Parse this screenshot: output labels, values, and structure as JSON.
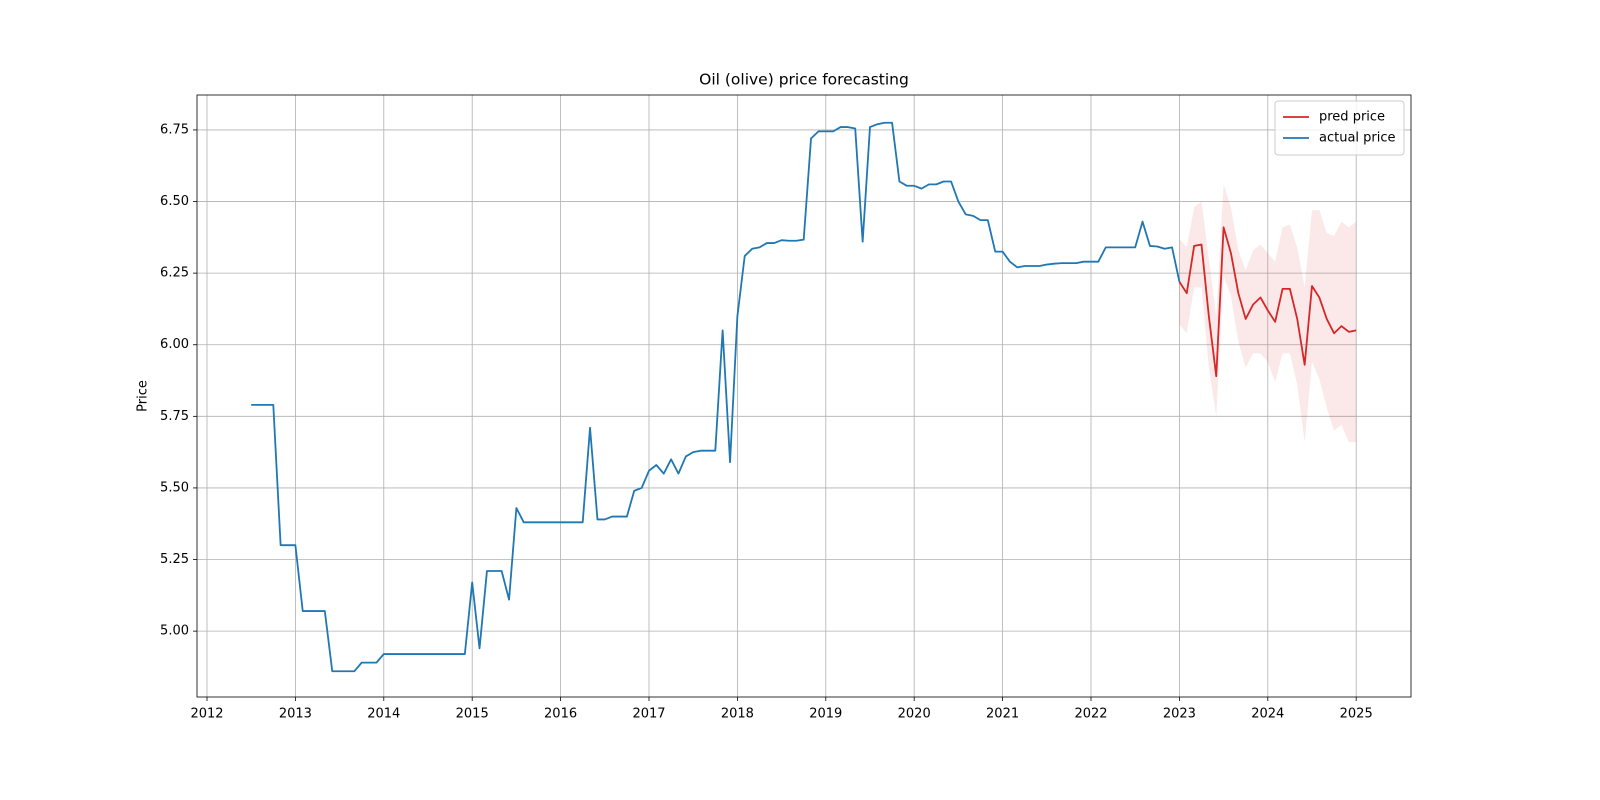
{
  "chart_data": {
    "type": "line",
    "title": "Oil (olive) price forecasting",
    "y_label": "Price",
    "xlim": [
      2011.887,
      2025.62
    ],
    "ylim": [
      4.77,
      6.872
    ],
    "xticks": [
      2012,
      2013,
      2014,
      2015,
      2016,
      2017,
      2018,
      2019,
      2020,
      2021,
      2022,
      2023,
      2024,
      2025
    ],
    "yticks": [
      {
        "value": 5,
        "label": "5.00"
      },
      {
        "value": 5.25,
        "label": "5.25"
      },
      {
        "value": 5.5,
        "label": "5.50"
      },
      {
        "value": 5.75,
        "label": "5.75"
      },
      {
        "value": 6,
        "label": "6.00"
      },
      {
        "value": 6.25,
        "label": "6.25"
      },
      {
        "value": 6.5,
        "label": "6.50"
      },
      {
        "value": 6.75,
        "label": "6.75"
      }
    ],
    "grid": true,
    "legend": "upper right",
    "series": [
      {
        "name": "pred price",
        "color": "#d62728",
        "band_color": "#d62728",
        "x": [
          2023,
          2023.083,
          2023.167,
          2023.25,
          2023.333,
          2023.417,
          2023.5,
          2023.583,
          2023.667,
          2023.75,
          2023.833,
          2023.917,
          2024,
          2024.083,
          2024.167,
          2024.25,
          2024.333,
          2024.417,
          2024.5,
          2024.583,
          2024.667,
          2024.75,
          2024.833,
          2024.917,
          2025
        ],
        "values": [
          6.22,
          6.18,
          6.345,
          6.35,
          6.1,
          5.89,
          6.41,
          6.32,
          6.18,
          6.09,
          6.14,
          6.165,
          6.12,
          6.08,
          6.195,
          6.195,
          6.09,
          5.93,
          6.205,
          6.165,
          6.09,
          6.04,
          6.065,
          6.045,
          6.05
        ],
        "upper": [
          6.37,
          6.34,
          6.48,
          6.5,
          6.3,
          6.1,
          6.56,
          6.48,
          6.33,
          6.26,
          6.33,
          6.35,
          6.32,
          6.29,
          6.41,
          6.42,
          6.34,
          6.2,
          6.47,
          6.47,
          6.39,
          6.38,
          6.43,
          6.41,
          6.43
        ],
        "lower": [
          6.07,
          6.04,
          6.2,
          6.2,
          5.92,
          5.75,
          6.24,
          6.17,
          6.01,
          5.92,
          5.97,
          5.97,
          5.94,
          5.87,
          5.97,
          5.97,
          5.86,
          5.66,
          5.94,
          5.88,
          5.78,
          5.7,
          5.72,
          5.66,
          5.66
        ]
      },
      {
        "name": "actual price",
        "color": "#1f77b4",
        "x": [
          2012.5,
          2012.583,
          2012.667,
          2012.75,
          2012.833,
          2012.917,
          2013,
          2013.083,
          2013.167,
          2013.25,
          2013.333,
          2013.417,
          2013.5,
          2013.583,
          2013.667,
          2013.75,
          2013.833,
          2013.917,
          2014,
          2014.083,
          2014.167,
          2014.25,
          2014.333,
          2014.417,
          2014.5,
          2014.583,
          2014.667,
          2014.75,
          2014.833,
          2014.917,
          2015,
          2015.083,
          2015.167,
          2015.25,
          2015.333,
          2015.417,
          2015.5,
          2015.583,
          2015.667,
          2015.75,
          2015.833,
          2015.917,
          2016,
          2016.083,
          2016.167,
          2016.25,
          2016.333,
          2016.417,
          2016.5,
          2016.583,
          2016.667,
          2016.75,
          2016.833,
          2016.917,
          2017,
          2017.083,
          2017.167,
          2017.25,
          2017.333,
          2017.417,
          2017.5,
          2017.583,
          2017.667,
          2017.75,
          2017.833,
          2017.917,
          2018,
          2018.083,
          2018.167,
          2018.25,
          2018.333,
          2018.417,
          2018.5,
          2018.583,
          2018.667,
          2018.75,
          2018.833,
          2018.917,
          2019,
          2019.083,
          2019.167,
          2019.25,
          2019.333,
          2019.417,
          2019.5,
          2019.583,
          2019.667,
          2019.75,
          2019.833,
          2019.917,
          2020,
          2020.083,
          2020.167,
          2020.25,
          2020.333,
          2020.417,
          2020.5,
          2020.583,
          2020.667,
          2020.75,
          2020.833,
          2020.917,
          2021,
          2021.083,
          2021.167,
          2021.25,
          2021.333,
          2021.417,
          2021.5,
          2021.583,
          2021.667,
          2021.75,
          2021.833,
          2021.917,
          2022,
          2022.083,
          2022.167,
          2022.25,
          2022.333,
          2022.417,
          2022.5,
          2022.583,
          2022.667,
          2022.75,
          2022.833,
          2022.917,
          2023
        ],
        "values": [
          5.79,
          5.79,
          5.79,
          5.79,
          5.3,
          5.3,
          5.3,
          5.07,
          5.07,
          5.07,
          5.07,
          4.86,
          4.86,
          4.86,
          4.86,
          4.89,
          4.89,
          4.89,
          4.92,
          4.92,
          4.92,
          4.92,
          4.92,
          4.92,
          4.92,
          4.92,
          4.92,
          4.92,
          4.92,
          4.92,
          5.17,
          4.94,
          5.21,
          5.21,
          5.21,
          5.11,
          5.43,
          5.38,
          5.38,
          5.38,
          5.38,
          5.38,
          5.38,
          5.38,
          5.38,
          5.38,
          5.71,
          5.39,
          5.39,
          5.4,
          5.4,
          5.4,
          5.49,
          5.5,
          5.56,
          5.58,
          5.55,
          5.6,
          5.55,
          5.61,
          5.625,
          5.63,
          5.63,
          5.63,
          6.05,
          5.59,
          6.1,
          6.31,
          6.335,
          6.34,
          6.355,
          6.355,
          6.365,
          6.363,
          6.363,
          6.367,
          6.72,
          6.745,
          6.745,
          6.745,
          6.76,
          6.76,
          6.755,
          6.36,
          6.76,
          6.77,
          6.775,
          6.775,
          6.57,
          6.555,
          6.555,
          6.545,
          6.56,
          6.56,
          6.57,
          6.57,
          6.5,
          6.455,
          6.45,
          6.435,
          6.435,
          6.325,
          6.325,
          6.29,
          6.27,
          6.275,
          6.275,
          6.275,
          6.28,
          6.283,
          6.285,
          6.285,
          6.285,
          6.29,
          6.29,
          6.29,
          6.34,
          6.34,
          6.34,
          6.34,
          6.34,
          6.43,
          6.345,
          6.343,
          6.335,
          6.34,
          6.22
        ]
      }
    ]
  }
}
